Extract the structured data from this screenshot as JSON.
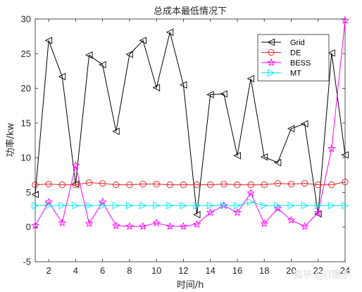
{
  "chart_data": {
    "type": "line",
    "title": "总成本最低情况下",
    "xlabel": "时间/h",
    "ylabel": "功率/kw",
    "xlim": [
      1,
      24
    ],
    "ylim": [
      -5,
      30
    ],
    "xticks": [
      2,
      4,
      6,
      8,
      10,
      12,
      14,
      16,
      18,
      20,
      22,
      24
    ],
    "yticks": [
      -5,
      0,
      5,
      10,
      15,
      20,
      25,
      30
    ],
    "grid": false,
    "legend_position": "top-right",
    "x": [
      1,
      2,
      3,
      4,
      5,
      6,
      7,
      8,
      9,
      10,
      11,
      12,
      13,
      14,
      15,
      16,
      17,
      18,
      19,
      20,
      21,
      22,
      23,
      24
    ],
    "series": [
      {
        "name": "Grid",
        "color": "#000000",
        "marker": "triangle-left",
        "values": [
          4.7,
          26.9,
          21.7,
          6.2,
          24.8,
          23.4,
          13.8,
          24.9,
          26.9,
          20.1,
          28.1,
          20.5,
          1.8,
          19.1,
          19.2,
          10.3,
          21.4,
          10.1,
          9.3,
          14.2,
          14.9,
          1.9,
          25.1,
          10.4
        ]
      },
      {
        "name": "DE",
        "color": "#e02020",
        "marker": "circle",
        "values": [
          6.1,
          6.2,
          6.1,
          6.1,
          6.4,
          6.3,
          6.1,
          6.1,
          6.2,
          6.2,
          6.1,
          6.1,
          6.1,
          6.1,
          6.2,
          6.1,
          6.1,
          6.1,
          6.3,
          6.2,
          6.3,
          6.1,
          6.1,
          6.5
        ]
      },
      {
        "name": "BESS",
        "color": "#ff00ff",
        "marker": "star",
        "values": [
          0.2,
          3.6,
          0.6,
          8.9,
          0.5,
          3.6,
          0.2,
          0.1,
          0.1,
          0.6,
          0.1,
          0.1,
          0.4,
          2.1,
          3.1,
          2.1,
          4.9,
          0.5,
          2.7,
          1.0,
          0.1,
          2.1,
          11.3,
          29.8
        ]
      },
      {
        "name": "MT",
        "color": "#00e5ee",
        "marker": "triangle-right",
        "values": [
          3.1,
          3.1,
          3.1,
          3.1,
          3.1,
          3.1,
          3.1,
          3.1,
          3.1,
          3.1,
          3.1,
          3.1,
          3.1,
          3.1,
          3.1,
          3.1,
          3.6,
          3.1,
          3.1,
          3.1,
          3.1,
          3.1,
          3.1,
          3.1
        ]
      }
    ]
  },
  "watermark": "知乎 @IT猿手"
}
